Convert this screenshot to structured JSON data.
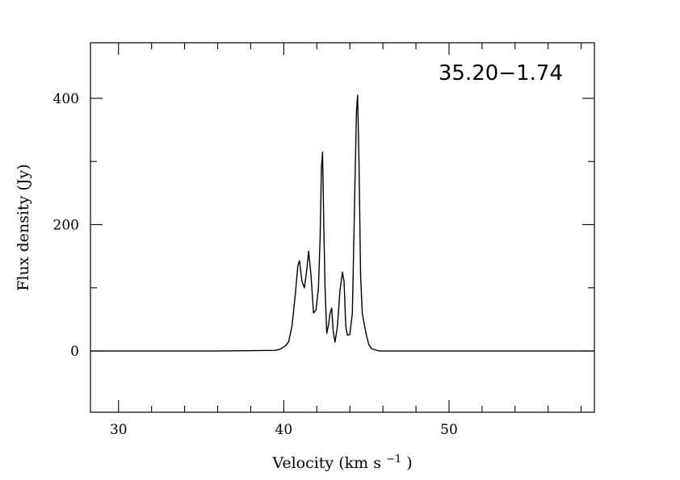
{
  "chart_data": {
    "type": "line",
    "annotation": "35.20−1.74",
    "xlabel": "Velocity (km s",
    "xlabel_sup": "−1",
    "xlabel_close": ")",
    "ylabel": "Flux density (Jy)",
    "xlim": [
      28.3,
      58.8
    ],
    "ylim": [
      -97,
      488
    ],
    "x_ticks": [
      30,
      40,
      50
    ],
    "y_ticks": [
      0,
      200,
      400
    ],
    "x_minor_ticks": [
      32,
      34,
      36,
      38,
      42,
      44,
      46,
      48,
      52,
      54,
      56,
      58
    ],
    "y_minor_ticks": [
      100,
      300
    ],
    "grid": false,
    "series": [
      {
        "x": [
          28.3,
          36.0,
          39.5,
          39.8,
          40.1,
          40.3,
          40.5,
          40.7,
          40.85,
          40.95,
          41.1,
          41.25,
          41.4,
          41.5,
          41.65,
          41.8,
          41.95,
          42.1,
          42.2,
          42.28,
          42.35,
          42.42,
          42.5,
          42.6,
          42.7,
          42.8,
          42.9,
          43.0,
          43.1,
          43.25,
          43.4,
          43.55,
          43.65,
          43.75,
          43.85,
          44.0,
          44.15,
          44.3,
          44.4,
          44.47,
          44.55,
          44.65,
          44.75,
          44.85,
          45.0,
          45.15,
          45.3,
          45.5,
          45.8,
          46.5,
          58.8
        ],
        "y": [
          0,
          0,
          1,
          3,
          8,
          15,
          40,
          90,
          135,
          143,
          110,
          100,
          130,
          158,
          120,
          60,
          65,
          100,
          180,
          290,
          315,
          200,
          100,
          28,
          40,
          60,
          68,
          30,
          14,
          40,
          95,
          125,
          110,
          40,
          25,
          26,
          60,
          250,
          380,
          405,
          300,
          120,
          60,
          45,
          25,
          10,
          4,
          2,
          0,
          0,
          0
        ]
      }
    ]
  }
}
